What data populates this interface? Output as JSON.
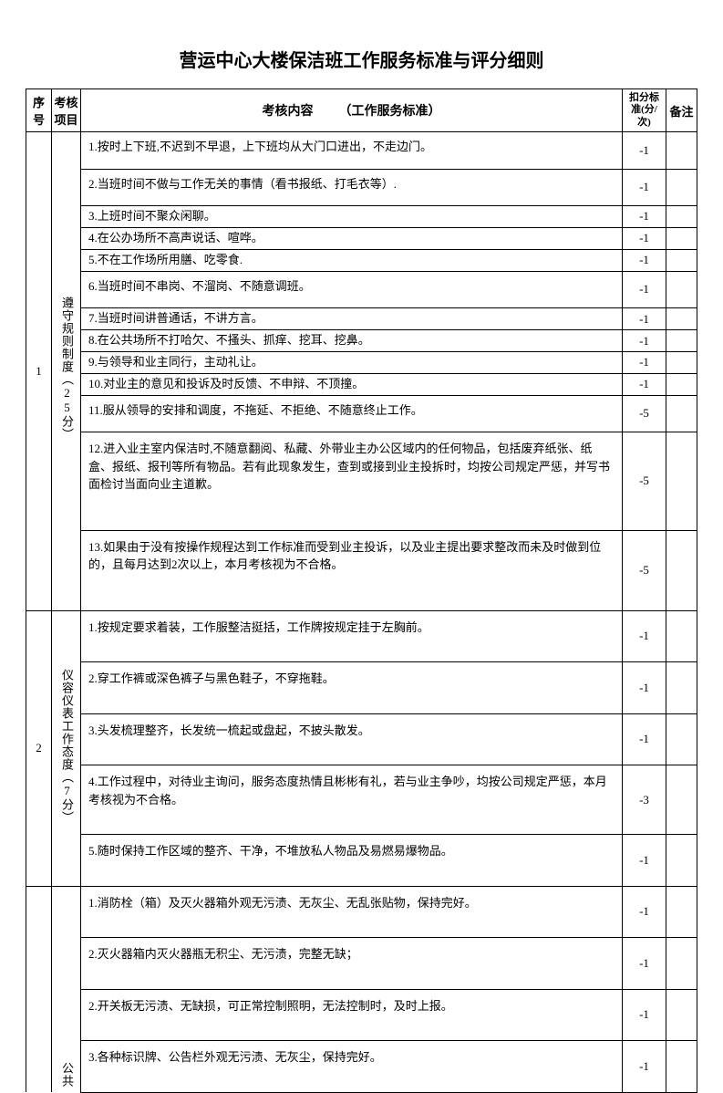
{
  "title": "营运中心大楼保洁班工作服务标准与评分细则",
  "headers": {
    "seq": "序号",
    "item": "考核项目",
    "content_label": "考核内容",
    "content_sub": "（工作服务标准）",
    "deduct": "扣分标准(分/次)",
    "remark": "备注"
  },
  "sections": [
    {
      "seq": "1",
      "item_label": "遵守规则制度（25分）",
      "rows": [
        {
          "content": "1.按时上下班,不迟到不早退，上下班均从大门口进出，不走边门。",
          "deduct": "-1",
          "height": "med"
        },
        {
          "content": "2.当班时间不做与工作无关的事情（看书报纸、打毛衣等）.",
          "deduct": "-1",
          "height": "med"
        },
        {
          "content": "3.上班时间不聚众闲聊。",
          "deduct": "-1",
          "height": "sm"
        },
        {
          "content": "4.在公办场所不高声说话、喧哗。",
          "deduct": "-1",
          "height": "sm"
        },
        {
          "content": "5.不在工作场所用膳、吃零食.",
          "deduct": "-1",
          "height": "sm"
        },
        {
          "content": "6.当班时间不串岗、不溜岗、不随意调班。",
          "deduct": "-1",
          "height": "med"
        },
        {
          "content": "7.当班时间讲普通话，不讲方言。",
          "deduct": "-1",
          "height": "sm"
        },
        {
          "content": "8.在公共场所不打哈欠、不搔头、抓痒、挖耳、挖鼻。",
          "deduct": "-1",
          "height": "sm"
        },
        {
          "content": "9.与领导和业主同行，主动礼让。",
          "deduct": "-1",
          "height": "sm"
        },
        {
          "content": "10.对业主的意见和投诉及时反馈、不申辩、不顶撞。",
          "deduct": "-1",
          "height": "sm"
        },
        {
          "content": "11.服从领导的安排和调度，不拖延、不拒绝、不随意终止工作。",
          "deduct": "-5",
          "height": "med"
        },
        {
          "content": "12.进入业主室内保洁时,不随意翻阅、私藏、外带业主办公区域内的任何物品，包括废弃纸张、纸盒、报纸、报刊等所有物品。若有此现象发生，查到或接到业主投拆时，均按公司规定严惩，并写书面检讨当面向业主道歉。",
          "deduct": "-5",
          "height": "tall"
        },
        {
          "content": "13.如果由于没有按操作规程达到工作标准而受到业主投诉，以及业主提出要求整改而未及时做到位的，且每月达到2次以上，本月考核视为不合格。",
          "deduct": "-5",
          "height": "tall"
        }
      ]
    },
    {
      "seq": "2",
      "item_label": "仪容仪表工作态度（7分）",
      "rows": [
        {
          "content": "1.按规定要求着装，工作服整洁挺括，工作牌按规定挂于左胸前。",
          "deduct": "-1",
          "height": "lg"
        },
        {
          "content": "2.穿工作裤或深色裤子与黑色鞋子，不穿拖鞋。",
          "deduct": "-1",
          "height": "lg"
        },
        {
          "content": "3.头发梳理整齐，长发统一梳起或盘起，不披头散发。",
          "deduct": "-1",
          "height": "lg"
        },
        {
          "content": "4.工作过程中，对待业主询问，服务态度热情且彬彬有礼，若与业主争吵，均按公司规定严惩，本月考核视为不合格。",
          "deduct": "-3",
          "height": "lg"
        },
        {
          "content": "5.随时保持工作区域的整齐、干净，不堆放私人物品及易燃易爆物品。",
          "deduct": "-1",
          "height": "lg"
        }
      ]
    },
    {
      "seq": "",
      "item_label": "公共",
      "rows": [
        {
          "content": "1.消防栓（箱）及灭火器箱外观无污渍、无灰尘、无乱张贴物，保持完好。",
          "deduct": "-1",
          "height": "lg"
        },
        {
          "content": "2.灭火器箱内灭火器瓶无积尘、无污渍，完整无缺；",
          "deduct": "-1",
          "height": "lg"
        },
        {
          "content": "2.开关板无污渍、无缺损，可正常控制照明，无法控制时，及时上报。",
          "deduct": "-1",
          "height": "lg"
        },
        {
          "content": "3.各种标识牌、公告栏外观无污渍、无灰尘，保持完好。",
          "deduct": "-1",
          "height": "lg"
        }
      ]
    }
  ]
}
